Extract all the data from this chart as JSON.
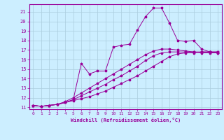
{
  "xlabel": "Windchill (Refroidissement éolien,°C)",
  "bg_color": "#cceeff",
  "grid_color": "#aaccdd",
  "line_color": "#990099",
  "xlim": [
    -0.5,
    23.5
  ],
  "ylim": [
    10.8,
    21.8
  ],
  "xticks": [
    0,
    1,
    2,
    3,
    4,
    5,
    6,
    7,
    8,
    9,
    10,
    11,
    12,
    13,
    14,
    15,
    16,
    17,
    18,
    19,
    20,
    21,
    22,
    23
  ],
  "yticks": [
    11,
    12,
    13,
    14,
    15,
    16,
    17,
    18,
    19,
    20,
    21
  ],
  "line1_x": [
    0,
    1,
    2,
    3,
    4,
    5,
    6,
    7,
    8,
    9,
    10,
    11,
    12,
    13,
    14,
    15,
    16,
    17,
    18,
    19,
    20,
    21,
    22,
    23
  ],
  "line1_y": [
    11.2,
    11.1,
    11.2,
    11.3,
    11.5,
    11.8,
    15.6,
    14.5,
    14.8,
    14.8,
    17.3,
    17.5,
    17.6,
    19.1,
    20.5,
    21.4,
    21.4,
    19.8,
    18.0,
    17.9,
    18.0,
    17.1,
    16.8,
    16.7
  ],
  "line2_x": [
    0,
    1,
    2,
    3,
    4,
    5,
    6,
    7,
    8,
    9,
    10,
    11,
    12,
    13,
    14,
    15,
    16,
    17,
    18,
    19,
    20,
    21,
    22,
    23
  ],
  "line2_y": [
    11.2,
    11.1,
    11.2,
    11.3,
    11.5,
    11.7,
    11.9,
    12.1,
    12.4,
    12.7,
    13.1,
    13.5,
    13.9,
    14.3,
    14.8,
    15.3,
    15.8,
    16.3,
    16.6,
    16.7,
    16.7,
    16.8,
    16.8,
    16.8
  ],
  "line3_x": [
    0,
    1,
    2,
    3,
    4,
    5,
    6,
    7,
    8,
    9,
    10,
    11,
    12,
    13,
    14,
    15,
    16,
    17,
    18,
    19,
    20,
    21,
    22,
    23
  ],
  "line3_y": [
    11.2,
    11.1,
    11.2,
    11.3,
    11.5,
    11.8,
    12.2,
    12.6,
    13.0,
    13.4,
    13.9,
    14.3,
    14.8,
    15.3,
    15.9,
    16.4,
    16.7,
    16.8,
    16.8,
    16.8,
    16.8,
    16.8,
    16.8,
    16.8
  ],
  "line4_x": [
    0,
    1,
    2,
    3,
    4,
    5,
    6,
    7,
    8,
    9,
    10,
    11,
    12,
    13,
    14,
    15,
    16,
    17,
    18,
    19,
    20,
    21,
    22,
    23
  ],
  "line4_y": [
    11.2,
    11.1,
    11.2,
    11.3,
    11.6,
    12.0,
    12.5,
    13.0,
    13.5,
    14.0,
    14.5,
    15.0,
    15.5,
    16.0,
    16.5,
    16.9,
    17.1,
    17.1,
    17.0,
    16.9,
    16.8,
    16.7,
    16.7,
    16.7
  ]
}
